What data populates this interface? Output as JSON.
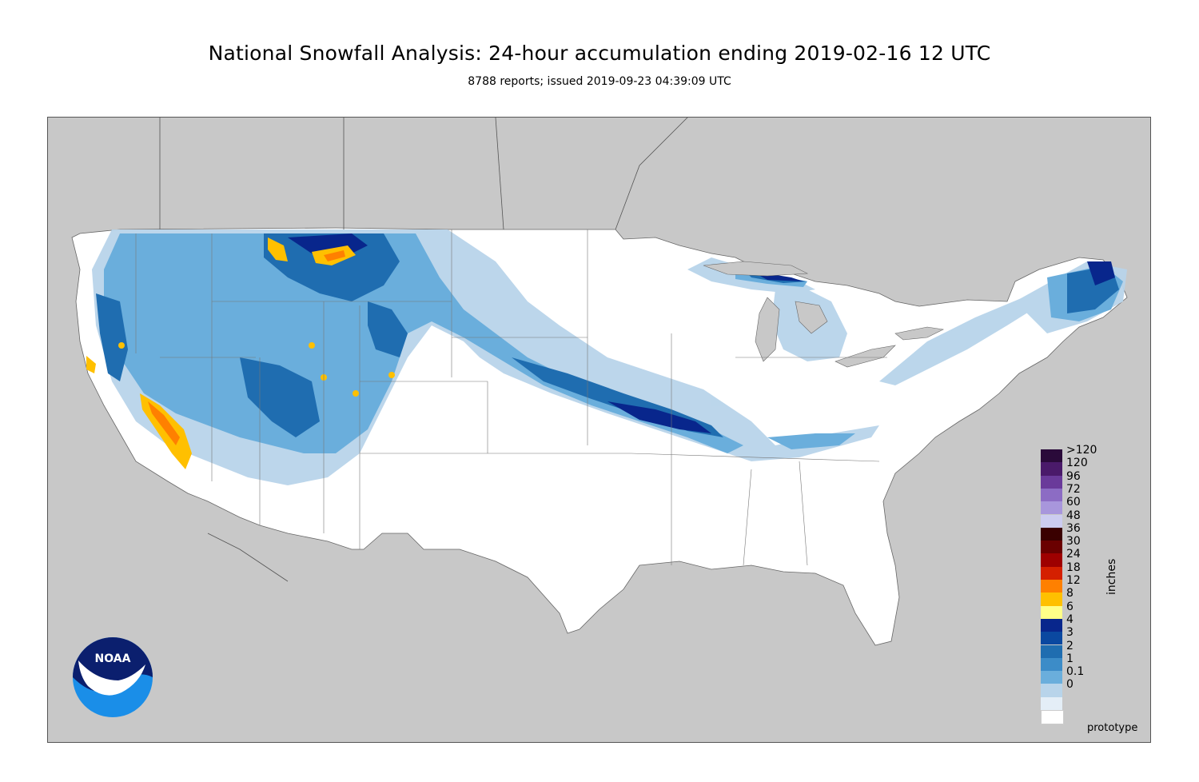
{
  "header": {
    "title": "National Snowfall Analysis: 24-hour accumulation ending 2019-02-16 12 UTC",
    "subtitle": "8788 reports; issued 2019-09-23 04:39:09 UTC"
  },
  "map": {
    "land_color": "#ffffff",
    "outside_color": "#c8c8c8",
    "border_color": "#666666"
  },
  "legend": {
    "unit": "inches",
    "items": [
      {
        "label": ">120",
        "color": "#2a0a3a"
      },
      {
        "label": "120",
        "color": "#4a1a6a"
      },
      {
        "label": "96",
        "color": "#6a3a9a"
      },
      {
        "label": "72",
        "color": "#8c6cc4"
      },
      {
        "label": "60",
        "color": "#a896dc"
      },
      {
        "label": "48",
        "color": "#ccccf0"
      },
      {
        "label": "36",
        "color": "#3a0000"
      },
      {
        "label": "30",
        "color": "#6a0000"
      },
      {
        "label": "24",
        "color": "#9e0000"
      },
      {
        "label": "18",
        "color": "#d42000"
      },
      {
        "label": "12",
        "color": "#ff8000"
      },
      {
        "label": "8",
        "color": "#ffc000"
      },
      {
        "label": "6",
        "color": "#ffff88"
      },
      {
        "label": "4",
        "color": "#08268c"
      },
      {
        "label": "3",
        "color": "#0a48a0"
      },
      {
        "label": "2",
        "color": "#1f6db0"
      },
      {
        "label": "1",
        "color": "#3c8cc8"
      },
      {
        "label": "0.1",
        "color": "#6aaedc"
      },
      {
        "label": "0",
        "color": "#b8d4ea"
      },
      {
        "label": "",
        "color": "#e4eef7"
      },
      {
        "label": "",
        "color": "#ffffff"
      }
    ]
  },
  "footer": {
    "note": "prototype"
  },
  "logo": {
    "text": "NOAA",
    "colors": {
      "top": "#0b1f6e",
      "bottom": "#1a8ee8",
      "bird": "#ffffff"
    }
  }
}
